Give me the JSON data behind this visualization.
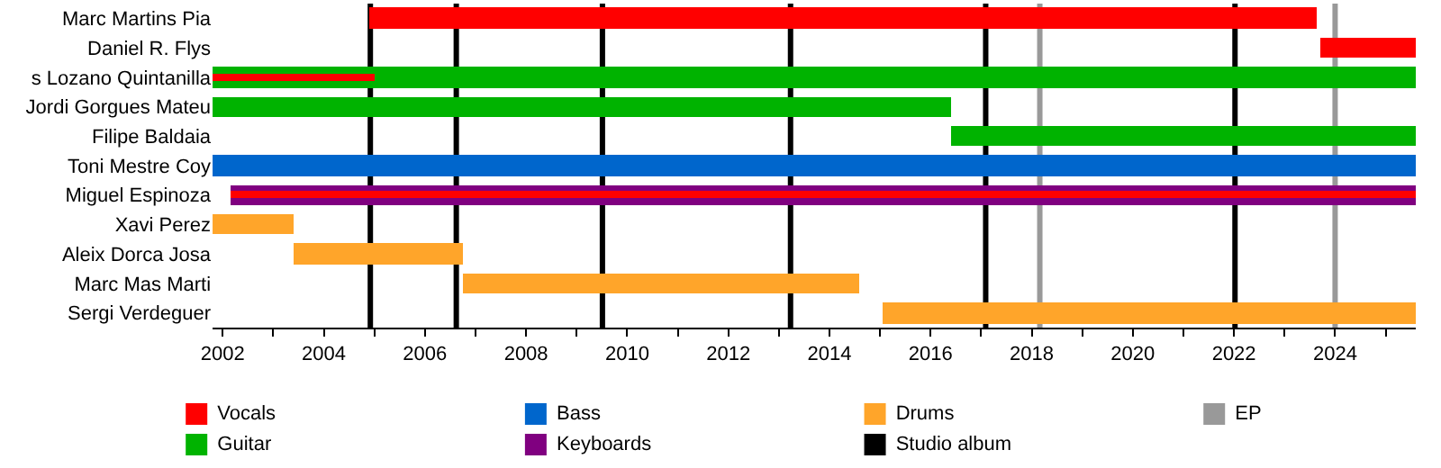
{
  "chart_data": {
    "type": "bar",
    "orientation": "horizontal",
    "categories": [
      "Marc Martins Pia",
      "Daniel R. Flys",
      "s Lozano Quintanilla",
      "Jordi Gorgues Mateu",
      "Filipe Baldaia",
      "Toni Mestre Coy",
      "Miguel Espinoza",
      "Xavi Perez",
      "Aleix Dorca Josa",
      "Marc Mas Marti",
      "Sergi Verdeguer"
    ],
    "series": [
      {
        "name": "Vocals",
        "color": "#ff0000",
        "base": [
          2004.9,
          2023.7,
          2001.8,
          null,
          null,
          null,
          2002.15,
          null,
          null,
          null,
          null
        ],
        "values": [
          18.75,
          1.9,
          3.2,
          null,
          null,
          null,
          23.45,
          null,
          null,
          null,
          null
        ]
      },
      {
        "name": "Guitar",
        "color": "#00b300",
        "base": [
          null,
          null,
          2001.8,
          2001.8,
          2016.4,
          null,
          null,
          null,
          null,
          null,
          null
        ],
        "values": [
          null,
          null,
          23.8,
          14.6,
          9.2,
          null,
          null,
          null,
          null,
          null,
          null
        ]
      },
      {
        "name": "Bass",
        "color": "#0066cc",
        "base": [
          null,
          null,
          null,
          null,
          null,
          2001.8,
          null,
          null,
          null,
          null,
          null
        ],
        "values": [
          null,
          null,
          null,
          null,
          null,
          23.8,
          null,
          null,
          null,
          null,
          null
        ]
      },
      {
        "name": "Keyboards",
        "color": "#800080",
        "base": [
          null,
          null,
          null,
          null,
          null,
          null,
          2002.15,
          null,
          null,
          null,
          null
        ],
        "values": [
          null,
          null,
          null,
          null,
          null,
          null,
          23.45,
          null,
          null,
          null,
          null
        ]
      },
      {
        "name": "Drums",
        "color": "#ffa52a",
        "base": [
          null,
          null,
          null,
          null,
          null,
          null,
          null,
          2001.8,
          2003.4,
          2006.75,
          2015.05
        ],
        "values": [
          null,
          null,
          null,
          null,
          null,
          null,
          null,
          1.6,
          3.35,
          7.85,
          10.55
        ]
      }
    ],
    "ref_lines": [
      {
        "axis": "x",
        "value": 2004.92,
        "label": "Studio album",
        "color": "#000000"
      },
      {
        "axis": "x",
        "value": 2006.62,
        "color": "#000000"
      },
      {
        "axis": "x",
        "value": 2009.51,
        "color": "#000000"
      },
      {
        "axis": "x",
        "value": 2013.23,
        "color": "#000000"
      },
      {
        "axis": "x",
        "value": 2017.09,
        "color": "#000000"
      },
      {
        "axis": "x",
        "value": 2022.02,
        "color": "#000000"
      },
      {
        "axis": "x",
        "value": 2018.16,
        "label": "EP",
        "color": "#999999"
      },
      {
        "axis": "x",
        "value": 2024.0,
        "color": "#999999"
      }
    ],
    "xlim": [
      2001.8,
      2025.6
    ],
    "xticks": [
      2002,
      {
        "value": 2003,
        "label": null
      },
      2004,
      {
        "value": 2005,
        "label": null
      },
      2006,
      {
        "value": 2007,
        "label": null
      },
      2008,
      {
        "value": 2009,
        "label": null
      },
      2010,
      {
        "value": 2011,
        "label": null
      },
      2012,
      {
        "value": 2013,
        "label": null
      },
      2014,
      {
        "value": 2015,
        "label": null
      },
      2016,
      {
        "value": 2017,
        "label": null
      },
      2018,
      {
        "value": 2019,
        "label": null
      },
      2020,
      {
        "value": 2021,
        "label": null
      },
      2022,
      {
        "value": 2023,
        "label": null
      },
      2024,
      {
        "value": 2025,
        "label": null
      }
    ],
    "grid": false,
    "legend": "bottom"
  }
}
